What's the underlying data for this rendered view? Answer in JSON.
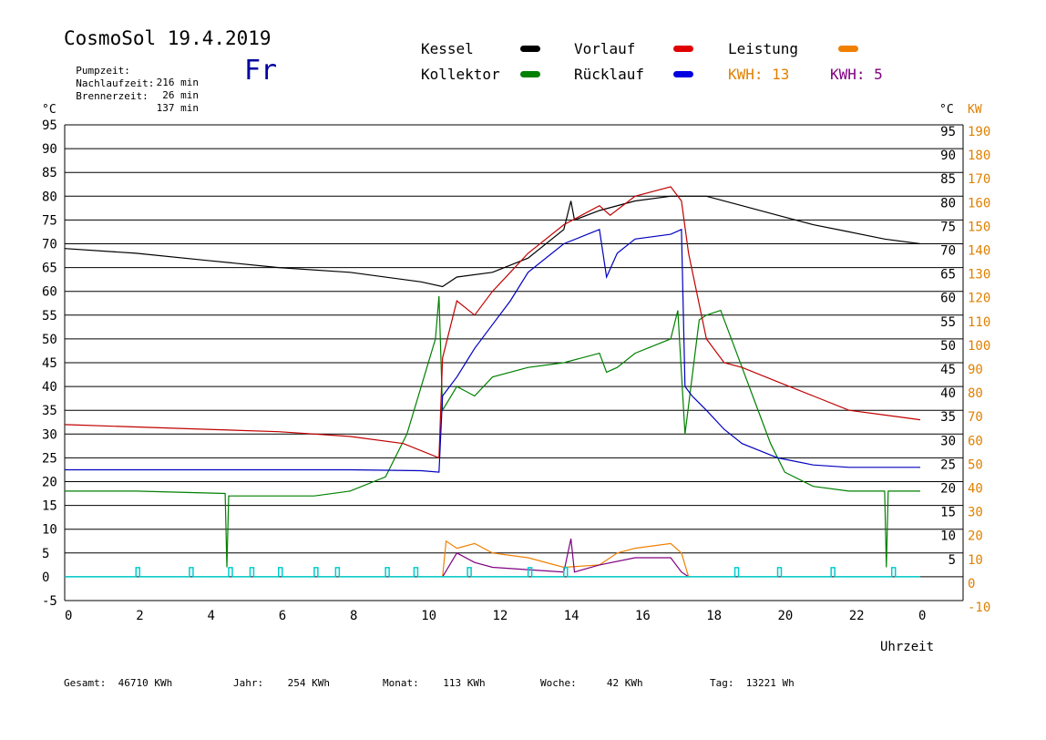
{
  "header": {
    "title": "CosmoSol 19.4.2019",
    "day": "Fr",
    "info": [
      {
        "label": "Pumpzeit:",
        "value": "216 min"
      },
      {
        "label": "Nachlaufzeit:",
        "value": "26 min"
      },
      {
        "label": "Brennerzeit:",
        "value": "137 min"
      }
    ]
  },
  "legend": {
    "kessel": "Kessel",
    "kollektor": "Kollektor",
    "vorlauf": "Vorlauf",
    "ruecklauf": "Rücklauf",
    "leistung": "Leistung",
    "kwh1": "KWH: 13",
    "kwh2": "KWH: 5"
  },
  "axes": {
    "left_unit": "°C",
    "right_unit": "°C",
    "right_unit2": "KW",
    "xlabel": "Uhrzeit",
    "x_ticks": [
      "0",
      "2",
      "4",
      "6",
      "8",
      "10",
      "12",
      "14",
      "16",
      "18",
      "20",
      "22",
      "0"
    ],
    "y_left_ticks": [
      "95",
      "90",
      "85",
      "80",
      "75",
      "70",
      "65",
      "60",
      "55",
      "50",
      "45",
      "40",
      "35",
      "30",
      "25",
      "20",
      "15",
      "10",
      "5",
      "0",
      "-5"
    ],
    "y_right_ticks": [
      "95",
      "90",
      "85",
      "80",
      "75",
      "70",
      "65",
      "60",
      "55",
      "50",
      "45",
      "40",
      "35",
      "30",
      "25",
      "20",
      "15",
      "10",
      "5"
    ],
    "kw_ticks": [
      "190",
      "180",
      "170",
      "160",
      "150",
      "140",
      "130",
      "120",
      "110",
      "100",
      "90",
      "80",
      "70",
      "60",
      "50",
      "40",
      "30",
      "20",
      "10",
      "0",
      "-10"
    ]
  },
  "footer": [
    {
      "label": "Gesamt:",
      "value": "46710 KWh"
    },
    {
      "label": "Jahr:",
      "value": "254 KWh"
    },
    {
      "label": "Monat:",
      "value": "113 KWh"
    },
    {
      "label": "Woche:",
      "value": "42 KWh"
    },
    {
      "label": "Tag:",
      "value": "13221 Wh"
    }
  ],
  "colors": {
    "kessel": "#000000",
    "kollektor": "#008000",
    "vorlauf": "#c00000",
    "ruecklauf": "#0000c0",
    "leistung": "#f08000",
    "kwh2": "#800080",
    "pump": "#00cccc",
    "kw_axis": "#e08000"
  },
  "chart_data": {
    "type": "line",
    "x_unit": "hours",
    "xlim": [
      0,
      24
    ],
    "ylim": [
      -5,
      95
    ],
    "y2lim": [
      -10,
      190
    ],
    "grid": true,
    "series": [
      {
        "name": "Kessel",
        "color": "#000000",
        "points": [
          [
            0,
            69
          ],
          [
            2,
            68
          ],
          [
            4,
            66.5
          ],
          [
            6,
            65
          ],
          [
            8,
            64
          ],
          [
            10,
            62
          ],
          [
            10.6,
            61
          ],
          [
            11,
            63
          ],
          [
            12,
            64
          ],
          [
            13,
            67
          ],
          [
            14,
            73
          ],
          [
            14.2,
            79
          ],
          [
            14.3,
            75
          ],
          [
            15,
            77
          ],
          [
            16,
            79
          ],
          [
            17,
            80
          ],
          [
            17.5,
            80
          ],
          [
            18,
            80
          ],
          [
            19,
            78
          ],
          [
            20,
            76
          ],
          [
            21,
            74
          ],
          [
            22,
            72.5
          ],
          [
            23,
            71
          ],
          [
            24,
            70
          ]
        ]
      },
      {
        "name": "Kollektor",
        "color": "#008000",
        "points": [
          [
            0,
            18
          ],
          [
            2,
            18
          ],
          [
            4.5,
            17.5
          ],
          [
            4.55,
            2
          ],
          [
            4.6,
            17
          ],
          [
            7,
            17
          ],
          [
            8,
            18
          ],
          [
            9,
            21
          ],
          [
            9.6,
            30
          ],
          [
            10,
            40
          ],
          [
            10.4,
            50
          ],
          [
            10.5,
            59
          ],
          [
            10.6,
            35
          ],
          [
            11,
            40
          ],
          [
            11.5,
            38
          ],
          [
            12,
            42
          ],
          [
            13,
            44
          ],
          [
            14,
            45
          ],
          [
            15,
            47
          ],
          [
            15.2,
            43
          ],
          [
            15.5,
            44
          ],
          [
            16,
            47
          ],
          [
            17,
            50
          ],
          [
            17.2,
            56
          ],
          [
            17.4,
            30
          ],
          [
            17.6,
            42
          ],
          [
            17.8,
            54
          ],
          [
            18,
            55
          ],
          [
            18.4,
            56
          ],
          [
            18.8,
            48
          ],
          [
            19.3,
            38
          ],
          [
            19.8,
            28
          ],
          [
            20.2,
            22
          ],
          [
            21,
            19
          ],
          [
            22,
            18
          ],
          [
            23,
            18
          ],
          [
            23.05,
            2
          ],
          [
            23.1,
            18
          ],
          [
            24,
            18
          ]
        ]
      },
      {
        "name": "Vorlauf",
        "color": "#c00000",
        "points": [
          [
            0,
            32
          ],
          [
            2,
            31.5
          ],
          [
            4,
            31
          ],
          [
            6,
            30.5
          ],
          [
            8,
            29.5
          ],
          [
            9.5,
            28
          ],
          [
            10.5,
            25
          ],
          [
            10.6,
            46
          ],
          [
            11,
            58
          ],
          [
            11.5,
            55
          ],
          [
            12,
            60
          ],
          [
            12.5,
            64
          ],
          [
            13,
            68
          ],
          [
            14,
            74
          ],
          [
            15,
            78
          ],
          [
            15.3,
            76
          ],
          [
            16,
            80
          ],
          [
            17,
            82
          ],
          [
            17.3,
            79
          ],
          [
            17.5,
            68
          ],
          [
            18,
            50
          ],
          [
            18.5,
            45
          ],
          [
            19,
            44
          ],
          [
            20,
            41
          ],
          [
            21,
            38
          ],
          [
            22,
            35
          ],
          [
            23,
            34
          ],
          [
            24,
            33
          ]
        ]
      },
      {
        "name": "Rücklauf",
        "color": "#0000c0",
        "points": [
          [
            0,
            22.5
          ],
          [
            2,
            22.5
          ],
          [
            4,
            22.5
          ],
          [
            6,
            22.5
          ],
          [
            8,
            22.5
          ],
          [
            10,
            22.3
          ],
          [
            10.5,
            22
          ],
          [
            10.6,
            38
          ],
          [
            11,
            42
          ],
          [
            11.5,
            48
          ],
          [
            12,
            53
          ],
          [
            12.5,
            58
          ],
          [
            13,
            64
          ],
          [
            14,
            70
          ],
          [
            15,
            73
          ],
          [
            15.2,
            63
          ],
          [
            15.5,
            68
          ],
          [
            16,
            71
          ],
          [
            17,
            72
          ],
          [
            17.3,
            73
          ],
          [
            17.4,
            40
          ],
          [
            17.6,
            38
          ],
          [
            18,
            35
          ],
          [
            18.5,
            31
          ],
          [
            19,
            28
          ],
          [
            20,
            25
          ],
          [
            21,
            23.5
          ],
          [
            22,
            23
          ],
          [
            23,
            23
          ],
          [
            24,
            23
          ]
        ]
      },
      {
        "name": "Leistung",
        "color": "#f08000",
        "axis": "kw",
        "points": [
          [
            10.6,
            0
          ],
          [
            10.7,
            15
          ],
          [
            11,
            12
          ],
          [
            11.5,
            14
          ],
          [
            12,
            10
          ],
          [
            13,
            8
          ],
          [
            14,
            4
          ],
          [
            15,
            5
          ],
          [
            15.5,
            10
          ],
          [
            16,
            12
          ],
          [
            17,
            14
          ],
          [
            17.3,
            10
          ],
          [
            17.5,
            0
          ]
        ]
      },
      {
        "name": "KWH 5",
        "color": "#800080",
        "axis": "kw",
        "points": [
          [
            10.6,
            0
          ],
          [
            11,
            10
          ],
          [
            11.5,
            6
          ],
          [
            12,
            4
          ],
          [
            13,
            3
          ],
          [
            14,
            2
          ],
          [
            14.2,
            16
          ],
          [
            14.3,
            2
          ],
          [
            15,
            5
          ],
          [
            16,
            8
          ],
          [
            17,
            8
          ],
          [
            17.3,
            2
          ],
          [
            17.5,
            0
          ]
        ]
      },
      {
        "name": "Pumpe",
        "color": "#00cccc",
        "pulses": [
          2.0,
          3.5,
          4.6,
          5.2,
          6.0,
          7.0,
          7.6,
          9.0,
          9.8,
          11.3,
          13.0,
          14.0,
          18.8,
          20.0,
          21.5,
          23.2
        ]
      }
    ]
  }
}
